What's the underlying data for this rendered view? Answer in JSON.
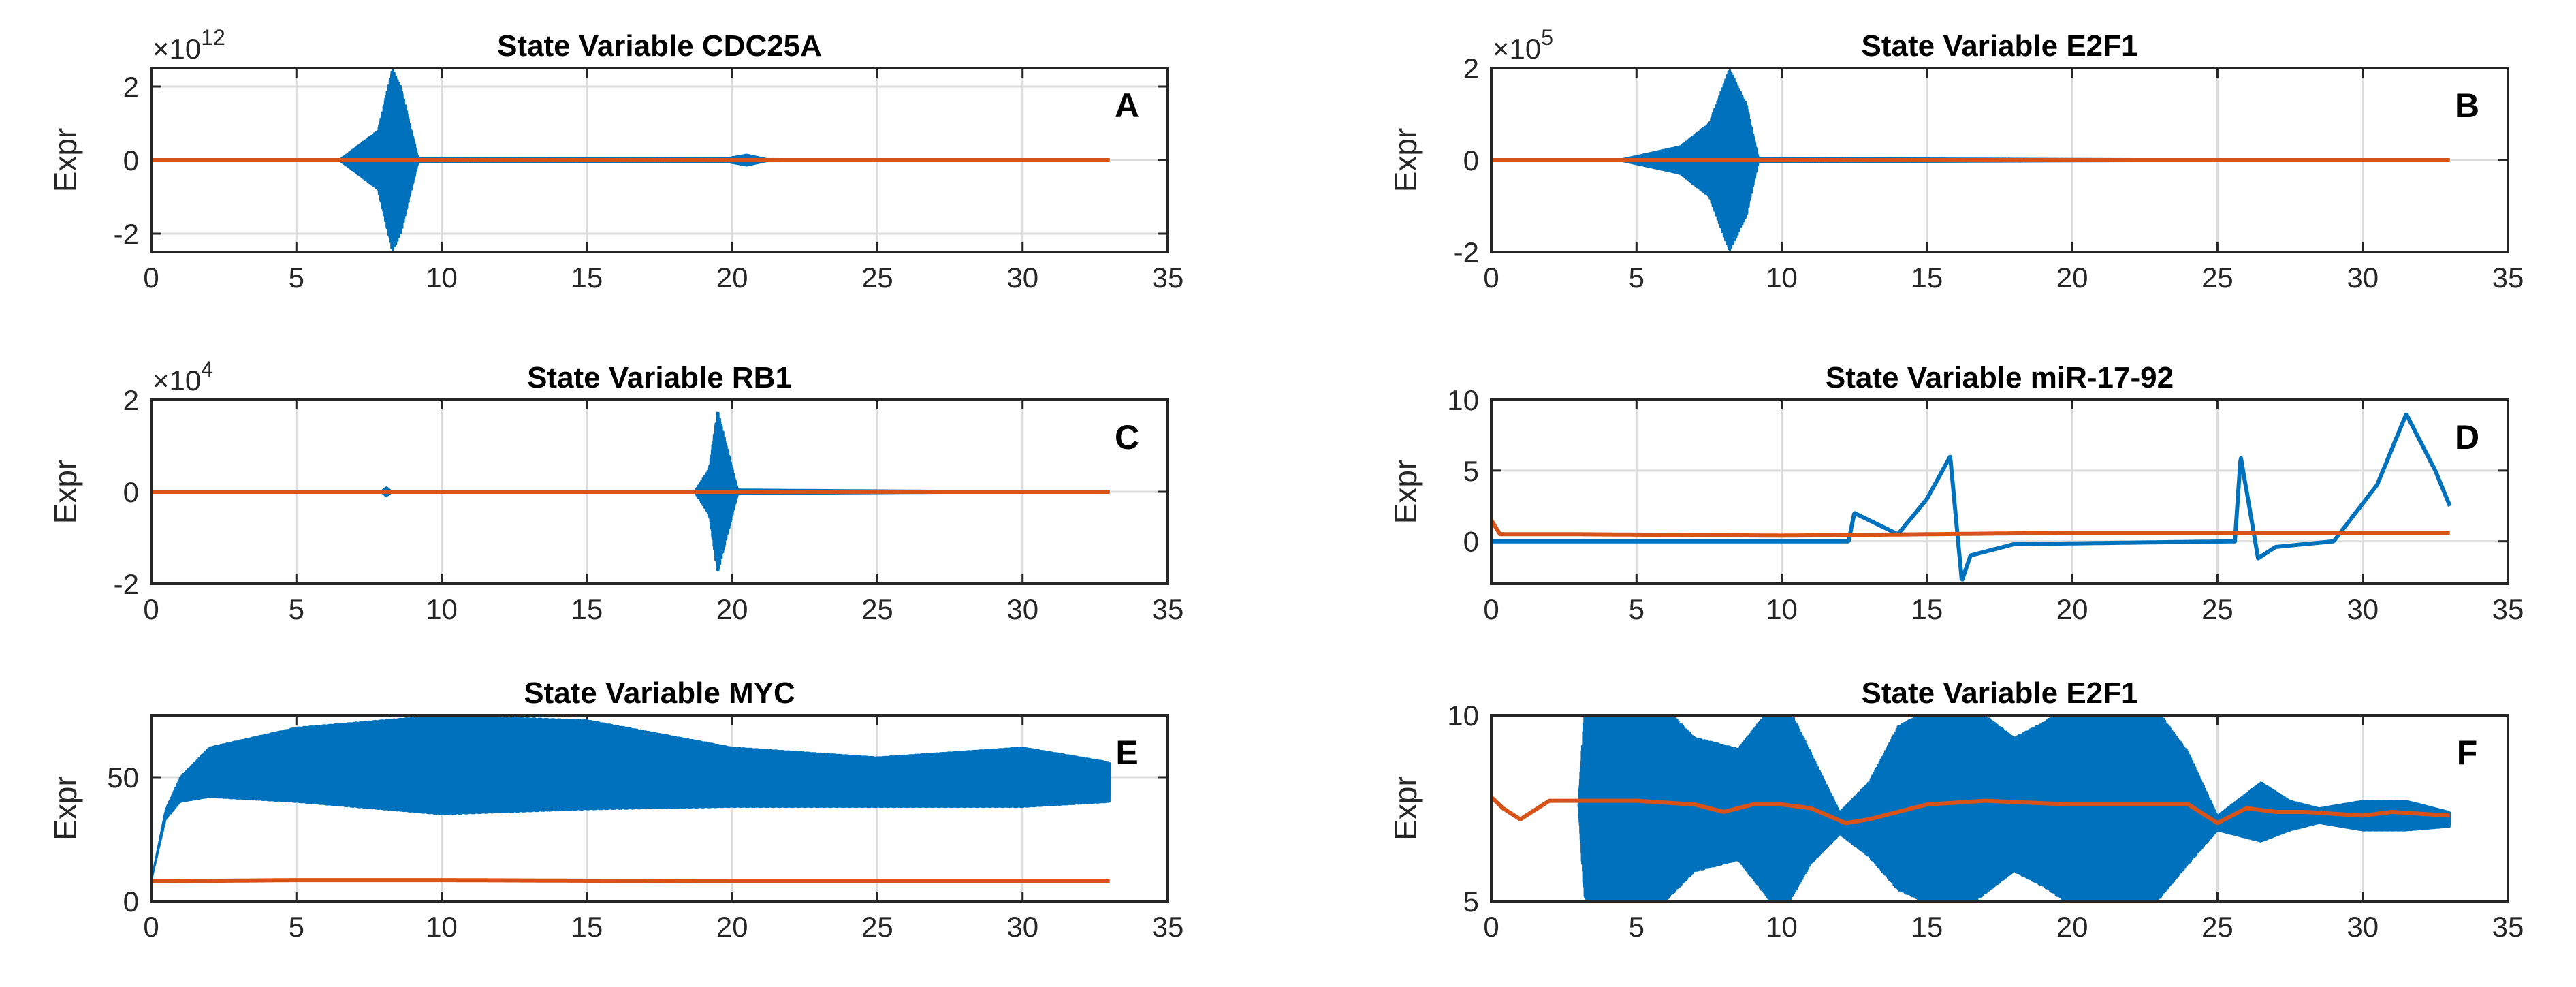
{
  "chart_data": [
    {
      "panel": "A",
      "type": "line",
      "title": "State Variable CDC25A",
      "xlabel": "",
      "ylabel": "Expr",
      "xlim": [
        0,
        35
      ],
      "ylim": [
        -2.5,
        2.5
      ],
      "xticks": [
        0,
        5,
        10,
        15,
        20,
        25,
        30,
        35
      ],
      "yticks": [
        -2,
        0,
        2
      ],
      "exponent_base": "×10",
      "exponent_power": "12",
      "grid": true,
      "series": [
        {
          "name": "blue oscillation",
          "color": "#0072BD",
          "x": [
            0,
            6.5,
            7.8,
            8.3,
            8.6,
            9.2,
            19.8,
            20.5,
            21.2,
            33
          ],
          "amplitude": [
            0,
            0.02,
            0.8,
            2.5,
            2.0,
            0.05,
            0.05,
            0.15,
            0.03,
            0
          ]
        },
        {
          "name": "orange baseline",
          "color": "#D95319",
          "x": [
            0,
            33
          ],
          "y": [
            0,
            0
          ]
        }
      ]
    },
    {
      "panel": "B",
      "type": "line",
      "title": "State Variable E2F1",
      "xlabel": "",
      "ylabel": "Expr",
      "xlim": [
        0,
        35
      ],
      "ylim": [
        -2,
        2
      ],
      "xticks": [
        0,
        5,
        10,
        15,
        20,
        25,
        30,
        35
      ],
      "yticks": [
        -2,
        0,
        2
      ],
      "exponent_base": "×10",
      "exponent_power": "5",
      "grid": true,
      "series": [
        {
          "name": "blue oscillation",
          "color": "#0072BD",
          "x": [
            0,
            4.5,
            6.5,
            7.5,
            8.2,
            8.8,
            9.2,
            33
          ],
          "amplitude": [
            0,
            0.02,
            0.3,
            0.8,
            2.0,
            1.2,
            0.05,
            0
          ]
        },
        {
          "name": "orange baseline",
          "color": "#D95319",
          "x": [
            0,
            33
          ],
          "y": [
            0,
            0
          ]
        }
      ]
    },
    {
      "panel": "C",
      "type": "line",
      "title": "State Variable RB1",
      "xlabel": "",
      "ylabel": "Expr",
      "xlim": [
        0,
        35
      ],
      "ylim": [
        -2,
        2
      ],
      "xticks": [
        0,
        5,
        10,
        15,
        20,
        25,
        30,
        35
      ],
      "yticks": [
        -2,
        0,
        2
      ],
      "exponent_base": "×10",
      "exponent_power": "4",
      "grid": true,
      "series": [
        {
          "name": "blue oscillation",
          "color": "#0072BD",
          "x": [
            0,
            7.9,
            8.1,
            8.3,
            18.7,
            19.2,
            19.5,
            19.9,
            20.2,
            33
          ],
          "amplitude": [
            0,
            0,
            0.1,
            0,
            0,
            0.5,
            1.8,
            0.8,
            0.05,
            0
          ]
        },
        {
          "name": "orange baseline",
          "color": "#D95319",
          "x": [
            0,
            33
          ],
          "y": [
            0,
            0
          ]
        }
      ]
    },
    {
      "panel": "D",
      "type": "line",
      "title": "State Variable miR-17-92",
      "xlabel": "",
      "ylabel": "Expr",
      "xlim": [
        0,
        35
      ],
      "ylim": [
        -3,
        10
      ],
      "xticks": [
        0,
        5,
        10,
        15,
        20,
        25,
        30,
        35
      ],
      "yticks": [
        0,
        5,
        10
      ],
      "grid": true,
      "series": [
        {
          "name": "blue",
          "color": "#0072BD",
          "x": [
            0,
            12.3,
            12.5,
            14.0,
            15.0,
            15.8,
            16.2,
            16.5,
            18.0,
            25.6,
            25.8,
            26.4,
            27.0,
            29.0,
            30.5,
            31.5,
            32.5,
            33.0
          ],
          "y": [
            0,
            0,
            2,
            0.5,
            3,
            6,
            -2.8,
            -1,
            -0.2,
            0,
            6,
            -1.2,
            -0.4,
            0,
            4,
            9,
            5,
            2.5
          ]
        },
        {
          "name": "orange",
          "color": "#D95319",
          "x": [
            0,
            0.3,
            3,
            10,
            15,
            20,
            25,
            30,
            33
          ],
          "y": [
            1.5,
            0.5,
            0.5,
            0.4,
            0.5,
            0.6,
            0.6,
            0.6,
            0.6
          ]
        }
      ]
    },
    {
      "panel": "E",
      "type": "line",
      "title": "State Variable MYC",
      "xlabel": "",
      "ylabel": "Expr",
      "xlim": [
        0,
        35
      ],
      "ylim": [
        0,
        75
      ],
      "xticks": [
        0,
        5,
        10,
        15,
        20,
        25,
        30,
        35
      ],
      "yticks": [
        0,
        50
      ],
      "grid": true,
      "series": [
        {
          "name": "blue",
          "color": "#0072BD",
          "x": [
            0,
            0.5,
            1,
            2,
            5,
            10,
            15,
            20,
            25,
            30,
            33
          ],
          "y": [
            8,
            35,
            45,
            52,
            55,
            55,
            55,
            50,
            48,
            50,
            48
          ],
          "amplitude": [
            0,
            2,
            5,
            10,
            15,
            20,
            18,
            12,
            10,
            12,
            8
          ]
        },
        {
          "name": "orange",
          "color": "#D95319",
          "x": [
            0,
            5,
            10,
            20,
            33
          ],
          "y": [
            8,
            8.5,
            8.5,
            8,
            8
          ]
        }
      ]
    },
    {
      "panel": "F",
      "type": "line",
      "title": "State Variable E2F1",
      "xlabel": "",
      "ylabel": "Expr",
      "xlim": [
        0,
        35
      ],
      "ylim": [
        5,
        10
      ],
      "xticks": [
        0,
        5,
        10,
        15,
        20,
        25,
        30,
        35
      ],
      "yticks": [
        5,
        10
      ],
      "grid": true,
      "series": [
        {
          "name": "blue oscillation",
          "color": "#0072BD",
          "x": [
            3,
            3.2,
            4,
            5.5,
            7,
            8.5,
            10,
            11,
            12,
            13,
            14,
            16,
            18,
            19,
            20.5,
            22.5,
            24,
            25,
            26.5,
            27.5,
            28.5,
            30,
            31.5,
            33
          ],
          "center": [
            7.6,
            7.6,
            7.6,
            7.6,
            7.6,
            7.6,
            7.6,
            7.5,
            7.1,
            7.2,
            7.5,
            7.6,
            7.6,
            7.6,
            7.6,
            7.6,
            7.5,
            7.1,
            7.4,
            7.3,
            7.3,
            7.3,
            7.3,
            7.2
          ],
          "amplitude": [
            0,
            2.5,
            3,
            3,
            1.8,
            1.5,
            3,
            1.5,
            0.3,
            1,
            2.2,
            3,
            1.8,
            2.2,
            3,
            3,
            1.5,
            0.2,
            0.8,
            0.4,
            0.2,
            0.4,
            0.4,
            0.2
          ]
        },
        {
          "name": "orange",
          "color": "#D95319",
          "x": [
            0,
            0.4,
            1,
            1.6,
            2,
            3,
            5,
            7,
            8,
            9,
            10,
            11,
            12.2,
            13,
            15,
            17,
            20,
            24,
            25,
            26,
            27,
            28,
            30,
            31,
            33
          ],
          "y": [
            7.8,
            7.5,
            7.2,
            7.5,
            7.7,
            7.7,
            7.7,
            7.6,
            7.4,
            7.6,
            7.6,
            7.5,
            7.1,
            7.2,
            7.6,
            7.7,
            7.6,
            7.6,
            7.1,
            7.5,
            7.4,
            7.4,
            7.3,
            7.4,
            7.3
          ]
        }
      ]
    }
  ]
}
